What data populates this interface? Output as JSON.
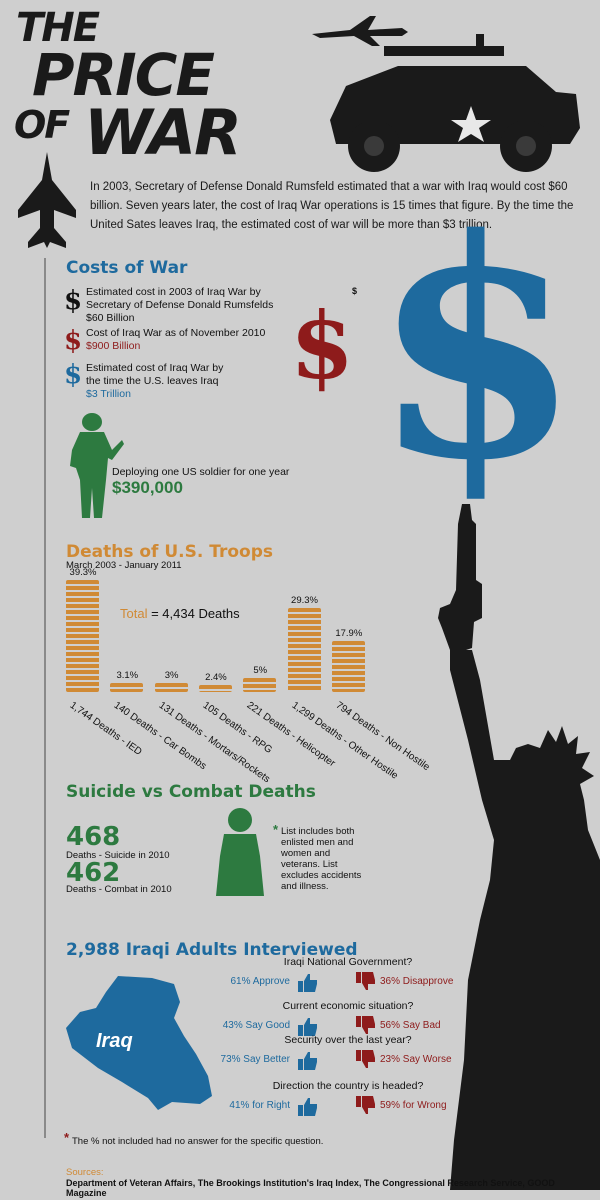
{
  "title": {
    "line1": "THE",
    "line2": "PRICE",
    "line3": "OF",
    "line4": "WAR"
  },
  "intro": "In 2003, Secretary of Defense Donald Rumsfeld estimated that a war with Iraq would cost $60 billion. Seven years later, the cost of Iraq War operations is 15 times that figure. By the time the United Sates leaves Iraq, the estimated cost of war will be more than $3 trillion.",
  "costs": {
    "heading": "Costs of War",
    "items": [
      {
        "text": "Estimated cost in 2003 of Iraq War by Secretary of Defense Donald Rumsfelds",
        "value": "$60 Billion",
        "color": "#111111"
      },
      {
        "text": "Cost of Iraq War as of November 2010",
        "value": "$900 Billion",
        "color": "#8e1b1b"
      },
      {
        "text": "Estimated cost of Iraq War by the time the U.S. leaves Iraq",
        "value": "$3 Trillion",
        "color": "#1e6a9e"
      }
    ],
    "soldier_text": "Deploying one US soldier for one year",
    "soldier_value": "$390,000"
  },
  "deaths": {
    "heading": "Deaths of U.S. Troops",
    "subheading": "March 2003 - January 2011",
    "total_label": "Total",
    "total_value": "= 4,434 Deaths"
  },
  "chart_data": {
    "type": "bar",
    "title": "Deaths of U.S. Troops",
    "categories": [
      "1,744 Deaths - IED",
      "140 Deaths - Car Bombs",
      "131 Deaths - Mortars/Rockets",
      "105 Deaths - RPG",
      "221 Deaths - Helicopter",
      "1,299 Deaths - Other Hostile",
      "794 Deaths - Non Hostile"
    ],
    "values": [
      39.3,
      3.1,
      3,
      2.4,
      5,
      29.3,
      17.9
    ],
    "labels": [
      "39.3%",
      "3.1%",
      "3%",
      "2.4%",
      "5%",
      "29.3%",
      "17.9%"
    ],
    "ylim": [
      0,
      40
    ]
  },
  "suicide": {
    "heading": "Suicide vs Combat Deaths",
    "suicide_num": "468",
    "suicide_label": "Deaths - Suicide in 2010",
    "combat_num": "462",
    "combat_label": "Deaths - Combat in 2010",
    "note_star": "*",
    "note": "List includes both enlisted men and women and veterans. List excludes accidents and illness."
  },
  "iraqi": {
    "heading": "2,988 Iraqi Adults Interviewed",
    "map_label": "Iraq",
    "questions": [
      {
        "q": "Iraqi National Government?",
        "pos": "61% Approve",
        "neg": "36% Disapprove"
      },
      {
        "q": "Current economic situation?",
        "pos": "43% Say Good",
        "neg": "56% Say Bad"
      },
      {
        "q": "Security over the last year?",
        "pos": "73% Say Better",
        "neg": "23% Say Worse"
      },
      {
        "q": "Direction the country is headed?",
        "pos": "41% for Right",
        "neg": "59% for Wrong"
      }
    ],
    "footnote_star": "*",
    "footnote": "The % not included had no answer for the specific question."
  },
  "sources": {
    "label": "Sources:",
    "text": "Department of Veteran Affairs, The Brookings Institution's Iraq Index, The Congressional Research Service, GOOD Magazine"
  },
  "dollar_small": "$",
  "colors": {
    "blue": "#1e6a9e",
    "red": "#8e1b1b",
    "green": "#2d7a40",
    "orange": "#d08a35"
  }
}
